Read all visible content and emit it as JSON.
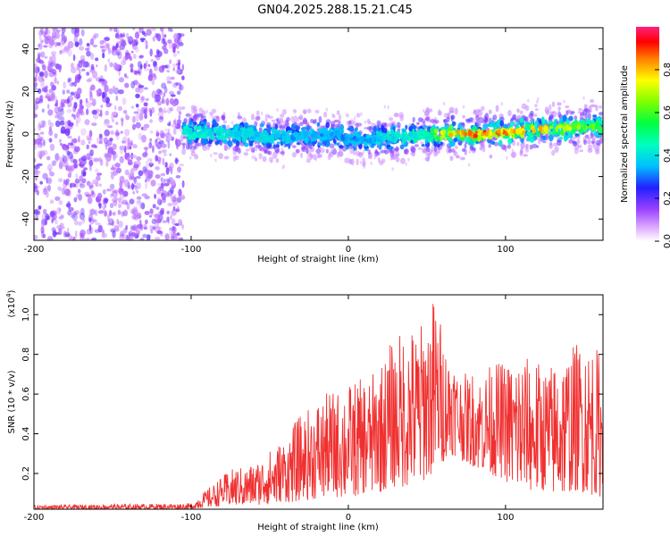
{
  "title": "GN04.2025.288.15.21.C45",
  "colors": {
    "signal_line": "#f03030",
    "scatter_background": "#8a5cf0",
    "axis": "#000000"
  },
  "chart_data": [
    {
      "type": "heatmap",
      "name": "spectrogram",
      "xlabel": "Height of straight line (km)",
      "ylabel": "Frequency (Hz)",
      "xlim": [
        -200,
        162
      ],
      "ylim": [
        -50,
        50
      ],
      "x_ticks": [
        "-200",
        "-100",
        "0",
        "100"
      ],
      "x_tick_values": [
        -200,
        -100,
        0,
        100
      ],
      "y_ticks": [
        "40",
        "20",
        "0",
        "-20",
        "-40"
      ],
      "y_tick_values": [
        40,
        20,
        0,
        -20,
        -40
      ],
      "colorbar": {
        "label": "Normalized spectral amplitude",
        "ticks": [
          "0.0",
          "0.2",
          "0.4",
          "0.6",
          "0.8"
        ],
        "tick_values": [
          0.0,
          0.2,
          0.4,
          0.6,
          0.8
        ],
        "range": [
          0,
          1
        ]
      },
      "noise_region_x": [
        -200,
        -105
      ],
      "band_center_hz": {
        "x": [
          -105,
          -90,
          -70,
          -50,
          -30,
          -10,
          0,
          10,
          20,
          40,
          60,
          80,
          100,
          120,
          140,
          155,
          162
        ],
        "y": [
          1,
          1,
          0,
          -1,
          -1,
          0,
          -2,
          -3,
          -2,
          -1,
          0,
          0,
          1,
          2,
          3,
          4,
          3
        ]
      },
      "band_peak_amplitude": {
        "x": [
          -105,
          -60,
          0,
          50,
          60,
          80,
          100,
          120,
          140,
          162
        ],
        "y": [
          0.45,
          0.4,
          0.35,
          0.5,
          0.8,
          0.95,
          0.9,
          0.85,
          0.75,
          0.6
        ]
      }
    },
    {
      "type": "line",
      "name": "snr",
      "xlabel": "Height of straight line (km)",
      "ylabel": "SNR (10 * v/v)",
      "y_multiplier_label": "(x10",
      "y_multiplier_exp": "4",
      "xlim": [
        -200,
        162
      ],
      "ylim": [
        0.02,
        1.1
      ],
      "x_ticks": [
        "-200",
        "-100",
        "0",
        "100"
      ],
      "x_tick_values": [
        -200,
        -100,
        0,
        100
      ],
      "y_ticks": [
        "1.0",
        "0.8",
        "0.6",
        "0.4",
        "0.2"
      ],
      "y_tick_values": [
        1.0,
        0.8,
        0.6,
        0.4,
        0.2
      ],
      "envelope": {
        "x": [
          -200,
          -100,
          -90,
          -75,
          -60,
          -45,
          -30,
          -15,
          0,
          15,
          30,
          45,
          55,
          65,
          75,
          90,
          110,
          130,
          150,
          162
        ],
        "upper": [
          0.04,
          0.05,
          0.12,
          0.22,
          0.25,
          0.35,
          0.5,
          0.6,
          0.65,
          0.7,
          0.9,
          0.95,
          1.1,
          0.8,
          0.7,
          0.75,
          0.8,
          0.75,
          0.9,
          0.8
        ],
        "lower": [
          0.02,
          0.02,
          0.03,
          0.04,
          0.04,
          0.05,
          0.06,
          0.08,
          0.08,
          0.1,
          0.12,
          0.15,
          0.2,
          0.3,
          0.25,
          0.2,
          0.12,
          0.1,
          0.1,
          0.08
        ]
      }
    }
  ]
}
